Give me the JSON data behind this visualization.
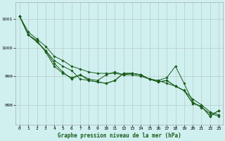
{
  "title": "Graphe pression niveau de la mer (hPa)",
  "background_color": "#d0f0f0",
  "grid_color": "#b8c8c8",
  "line_color": "#1a5c1a",
  "xlim": [
    -0.5,
    23.5
  ],
  "ylim": [
    997.3,
    1001.6
  ],
  "yticks": [
    998,
    999,
    1000,
    1001
  ],
  "xticks": [
    0,
    1,
    2,
    3,
    4,
    5,
    6,
    7,
    8,
    9,
    10,
    11,
    12,
    13,
    14,
    15,
    16,
    17,
    18,
    19,
    20,
    21,
    22,
    23
  ],
  "series": [
    [
      1001.1,
      1000.55,
      1000.3,
      1000.05,
      999.7,
      999.55,
      999.35,
      999.25,
      999.15,
      999.1,
      999.1,
      999.1,
      999.05,
      999.05,
      999.0,
      998.9,
      998.85,
      998.75,
      998.65,
      998.5,
      998.2,
      998.0,
      997.75,
      997.65
    ],
    [
      1001.1,
      1000.45,
      1000.25,
      999.85,
      999.35,
      999.1,
      998.95,
      999.05,
      998.9,
      998.85,
      999.05,
      999.15,
      999.05,
      999.1,
      999.05,
      998.9,
      998.85,
      998.95,
      999.35,
      998.75,
      998.1,
      997.9,
      997.7,
      997.6
    ],
    [
      1001.1,
      1000.45,
      1000.2,
      999.9,
      999.55,
      999.35,
      999.2,
      998.9,
      998.85,
      998.8,
      998.75,
      998.85,
      999.1,
      999.1,
      999.05,
      998.9,
      998.8,
      998.85,
      998.65,
      998.5,
      998.05,
      997.95,
      997.6,
      997.8
    ],
    [
      1001.1,
      1000.45,
      1000.2,
      999.9,
      999.45,
      999.15,
      998.9,
      999.05,
      998.85,
      998.8,
      998.75,
      998.85,
      999.1,
      999.1,
      999.05,
      998.9,
      998.8,
      998.85,
      998.65,
      998.5,
      998.05,
      997.95,
      997.6,
      997.8
    ]
  ]
}
